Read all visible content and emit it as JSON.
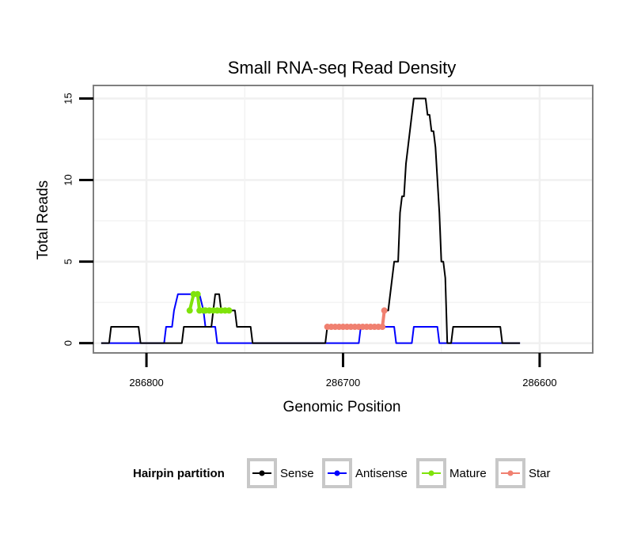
{
  "chart_data": {
    "type": "line",
    "title": "Small RNA-seq Read Density",
    "xlabel": "Genomic Position",
    "ylabel": "Total Reads",
    "x_reversed": true,
    "xlim": [
      286827,
      286573
    ],
    "ylim": [
      -0.6,
      15.8
    ],
    "x_ticks": [
      286800,
      286700,
      286600
    ],
    "x_tick_labels": [
      "286800",
      "286700",
      "286600"
    ],
    "y_ticks": [
      0,
      5,
      10,
      15
    ],
    "y_tick_labels": [
      "0",
      "5",
      "10",
      "15"
    ],
    "grid": true,
    "legend": {
      "title": "Hairpin partition",
      "position": "bottom",
      "entries": [
        "Sense",
        "Antisense",
        "Mature",
        "Star"
      ]
    },
    "colors": {
      "Sense": "#000000",
      "Antisense": "#0000ff",
      "Mature": "#7fe30b",
      "Star": "#f08070"
    },
    "series": [
      {
        "name": "Sense",
        "points": [
          [
            286823,
            0
          ],
          [
            286819,
            0
          ],
          [
            286818,
            1
          ],
          [
            286804,
            1
          ],
          [
            286803,
            0
          ],
          [
            286782,
            0
          ],
          [
            286781,
            1
          ],
          [
            286767,
            1
          ],
          [
            286766,
            2
          ],
          [
            286765,
            3
          ],
          [
            286763,
            3
          ],
          [
            286762,
            2
          ],
          [
            286755,
            2
          ],
          [
            286754,
            1
          ],
          [
            286747,
            1
          ],
          [
            286746,
            0
          ],
          [
            286709,
            0
          ],
          [
            286708,
            1
          ],
          [
            286680,
            1
          ],
          [
            286679,
            2
          ],
          [
            286677,
            2
          ],
          [
            286676,
            3
          ],
          [
            286674,
            5
          ],
          [
            286672,
            5
          ],
          [
            286671,
            8
          ],
          [
            286670,
            9
          ],
          [
            286669,
            9
          ],
          [
            286668,
            11
          ],
          [
            286667,
            12
          ],
          [
            286665,
            14
          ],
          [
            286664,
            15
          ],
          [
            286658,
            15
          ],
          [
            286657,
            14
          ],
          [
            286656,
            14
          ],
          [
            286655,
            13
          ],
          [
            286654,
            13
          ],
          [
            286653,
            12
          ],
          [
            286651,
            8
          ],
          [
            286650,
            5
          ],
          [
            286649,
            5
          ],
          [
            286648,
            4
          ],
          [
            286647,
            0
          ],
          [
            286645,
            0
          ],
          [
            286644,
            1
          ],
          [
            286620,
            1
          ],
          [
            286619,
            0
          ],
          [
            286610,
            0
          ]
        ]
      },
      {
        "name": "Antisense",
        "points": [
          [
            286823,
            0
          ],
          [
            286791,
            0
          ],
          [
            286790,
            1
          ],
          [
            286787,
            1
          ],
          [
            286786,
            2
          ],
          [
            286784,
            3
          ],
          [
            286773,
            3
          ],
          [
            286771,
            2
          ],
          [
            286770,
            1
          ],
          [
            286765,
            1
          ],
          [
            286764,
            0
          ],
          [
            286692,
            0
          ],
          [
            286691,
            1
          ],
          [
            286674,
            1
          ],
          [
            286673,
            0
          ],
          [
            286665,
            0
          ],
          [
            286664,
            1
          ],
          [
            286652,
            1
          ],
          [
            286651,
            0
          ],
          [
            286610,
            0
          ]
        ]
      },
      {
        "name": "Mature",
        "points": [
          [
            286778,
            2
          ],
          [
            286776,
            3
          ],
          [
            286774,
            3
          ],
          [
            286773,
            2
          ],
          [
            286771,
            2
          ],
          [
            286770,
            2
          ],
          [
            286768,
            2
          ],
          [
            286766,
            2
          ],
          [
            286764,
            2
          ],
          [
            286762,
            2
          ],
          [
            286760,
            2
          ],
          [
            286758,
            2
          ]
        ]
      },
      {
        "name": "Star",
        "points": [
          [
            286708,
            1
          ],
          [
            286706,
            1
          ],
          [
            286704,
            1
          ],
          [
            286702,
            1
          ],
          [
            286700,
            1
          ],
          [
            286698,
            1
          ],
          [
            286696,
            1
          ],
          [
            286694,
            1
          ],
          [
            286692,
            1
          ],
          [
            286690,
            1
          ],
          [
            286688,
            1
          ],
          [
            286686,
            1
          ],
          [
            286684,
            1
          ],
          [
            286682,
            1
          ],
          [
            286680,
            1
          ],
          [
            286679,
            2
          ]
        ]
      }
    ]
  }
}
